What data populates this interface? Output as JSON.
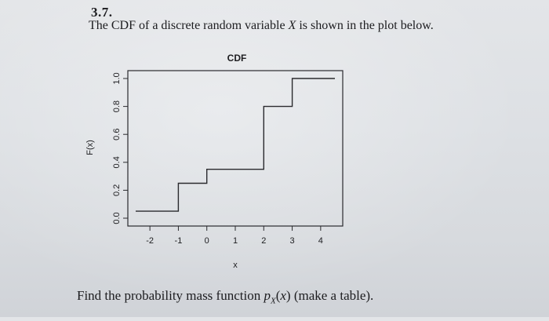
{
  "problem": {
    "number": "3.7.",
    "statement_before": "The CDF of a discrete random variable ",
    "statement_var": "X",
    "statement_after": " is shown in the plot below.",
    "question_before": "Find the probability mass function ",
    "question_pmf": "p",
    "question_pmf_sub": "X",
    "question_pmf_arg": "(x)",
    "question_after": " (make a table)."
  },
  "chart_data": {
    "type": "line",
    "step": true,
    "title": "CDF",
    "xlabel": "x",
    "ylabel": "F(x)",
    "xlim": [
      -2.5,
      4.5
    ],
    "ylim": [
      0,
      1
    ],
    "x_ticks": [
      -2,
      -1,
      0,
      1,
      2,
      3,
      4
    ],
    "x_tick_labels": [
      "-2",
      "-1",
      "0",
      "1",
      "2",
      "3",
      "4"
    ],
    "y_ticks": [
      0,
      0.2,
      0.4,
      0.6,
      0.8,
      1.0
    ],
    "y_tick_labels": [
      "0.0",
      "0.2",
      "0.4",
      "0.6",
      "0.8",
      "1.0"
    ],
    "series": [
      {
        "x": [
          -2.5,
          -1,
          -1,
          0,
          0,
          2,
          2,
          3,
          3,
          4.5
        ],
        "y": [
          0.05,
          0.05,
          0.25,
          0.25,
          0.35,
          0.35,
          0.8,
          0.8,
          1.0,
          1.0
        ]
      }
    ],
    "grid": false,
    "line_color": "#2a2a2e"
  }
}
